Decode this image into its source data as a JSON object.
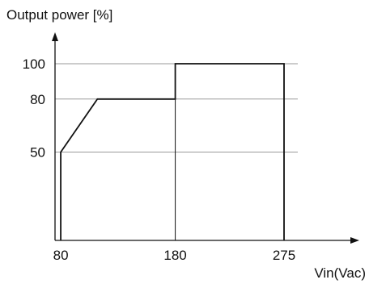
{
  "chart_data": {
    "type": "line",
    "ylabel": "Output power [%]",
    "xlabel": "Vin(Vac)",
    "x_ticks": [
      80,
      180,
      275
    ],
    "y_ticks": [
      50,
      80,
      100
    ],
    "xlim": [
      75,
      287
    ],
    "ylim": [
      0,
      100
    ],
    "grid": "horizontal",
    "series": [
      {
        "x": [
          80,
          80,
          112,
          180,
          180,
          275,
          275
        ],
        "y": [
          0,
          50,
          80,
          80,
          100,
          100,
          0
        ]
      }
    ],
    "vertical_lines_at": [
      180
    ]
  },
  "colors": {
    "curve": "#111111",
    "grid": "#9a9a9a",
    "axis": "#111111"
  }
}
